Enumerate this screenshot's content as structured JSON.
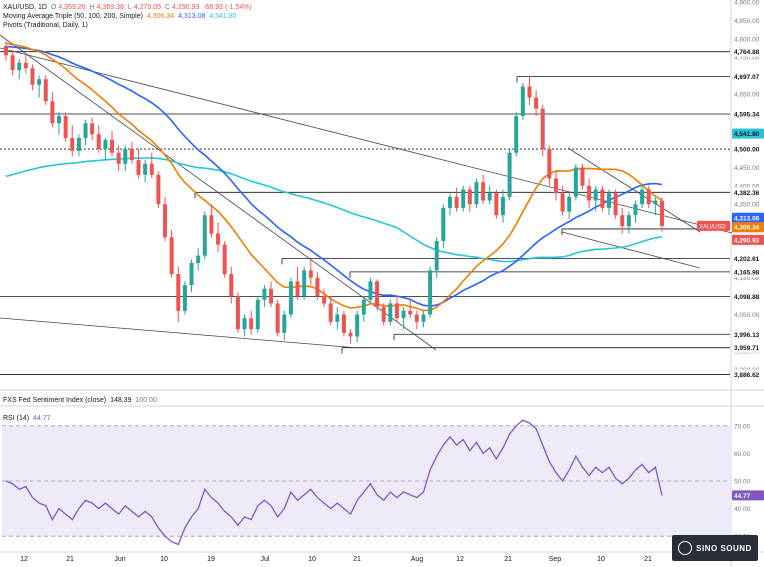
{
  "colors": {
    "up": "#26a69a",
    "down": "#ef5350",
    "ma50": "#f57c00",
    "ma100": "#2962ff",
    "ma200": "#26c6da",
    "rsi": "#7e57c2",
    "trend": "#434651",
    "pivot": "#131722",
    "rsiBand": "#e1d8f3"
  },
  "chart": {
    "symbol": "XAU/USD, 1D",
    "ohlc": {
      "o_label": "O",
      "o": "4,359.26",
      "h_label": "H",
      "h": "4,369.38",
      "l_label": "L",
      "l": "4,275.05",
      "c_label": "C",
      "c": "4,290.93",
      "change": "-66.92 (-1.54%)"
    },
    "ma_legend": {
      "label": "Moving Average Triple (50, 100, 200, Simple)",
      "v50": "4,306.34",
      "v100": "4,313.08",
      "v200": "4,541.80"
    },
    "pivots_legend": "Pivots (Traditional, Daily, 1)",
    "sentiment_legend": {
      "label": "FXS Fed Sentiment Index (close)",
      "value": "148.39",
      "extra": "100.00"
    },
    "rsi_legend": {
      "label": "RSI (14)",
      "value": "44.77"
    },
    "price_badge": {
      "label": "XAU/USD",
      "value": "4,290.93"
    }
  },
  "chart_data": {
    "type": "candlestick",
    "title": "XAU/USD, 1D",
    "ylim": [
      3850,
      4900
    ],
    "y_ticks": [
      "4,900.00",
      "4,850.00",
      "4,800.00",
      "4,750.00",
      "4,700.00",
      "4,650.00",
      "4,600.00",
      "4,550.00",
      "4,500.00",
      "4,450.00",
      "4,400.00",
      "4,350.00",
      "4,300.00",
      "4,250.00",
      "4,200.00",
      "4,150.00",
      "4,100.00",
      "4,050.00",
      "4,000.00",
      "3,950.00",
      "3,900.00"
    ],
    "x_ticks": [
      "12",
      "21",
      "Jun",
      "10",
      "19",
      "Jul",
      "10",
      "21",
      "Aug",
      "12",
      "21",
      "Sep",
      "10",
      "21",
      "Oct"
    ],
    "price_levels": [
      {
        "label": "4,764.88",
        "value": 4764.88
      },
      {
        "label": "4,697.07",
        "value": 4697.07
      },
      {
        "label": "4,595.34",
        "value": 4595.34
      },
      {
        "label": "4,500.00",
        "value": 4500.0
      },
      {
        "label": "4,382.36",
        "value": 4382.36
      },
      {
        "label": "4,282.69",
        "value": 4282.69
      },
      {
        "label": "4,202.61",
        "value": 4202.61
      },
      {
        "label": "4,165.98",
        "value": 4165.98
      },
      {
        "label": "4,098.88",
        "value": 4098.88
      },
      {
        "label": "3,996.13",
        "value": 3996.13
      },
      {
        "label": "3,959.71",
        "value": 3959.71
      },
      {
        "label": "3,886.62",
        "value": 3886.62
      }
    ],
    "tag_labels": {
      "ma200": "4,541.80",
      "ma100": "4,313.08",
      "ma50": "4,306.34",
      "last": "4,290.93"
    },
    "candles_note": "approximate daily OHLC read off the chart",
    "candles": [
      [
        4780,
        4795,
        4740,
        4755
      ],
      [
        4755,
        4770,
        4700,
        4715
      ],
      [
        4715,
        4745,
        4690,
        4735
      ],
      [
        4735,
        4760,
        4705,
        4720
      ],
      [
        4720,
        4730,
        4660,
        4675
      ],
      [
        4675,
        4700,
        4640,
        4690
      ],
      [
        4690,
        4700,
        4620,
        4630
      ],
      [
        4630,
        4655,
        4560,
        4570
      ],
      [
        4570,
        4600,
        4540,
        4590
      ],
      [
        4590,
        4600,
        4520,
        4530
      ],
      [
        4530,
        4565,
        4480,
        4495
      ],
      [
        4495,
        4540,
        4480,
        4530
      ],
      [
        4530,
        4580,
        4510,
        4570
      ],
      [
        4570,
        4585,
        4525,
        4540
      ],
      [
        4540,
        4565,
        4490,
        4500
      ],
      [
        4500,
        4530,
        4470,
        4525
      ],
      [
        4525,
        4550,
        4480,
        4490
      ],
      [
        4490,
        4510,
        4440,
        4460
      ],
      [
        4460,
        4510,
        4440,
        4500
      ],
      [
        4500,
        4520,
        4460,
        4470
      ],
      [
        4470,
        4500,
        4420,
        4430
      ],
      [
        4430,
        4470,
        4410,
        4460
      ],
      [
        4460,
        4490,
        4420,
        4430
      ],
      [
        4430,
        4440,
        4340,
        4350
      ],
      [
        4350,
        4370,
        4250,
        4260
      ],
      [
        4260,
        4280,
        4150,
        4160
      ],
      [
        4160,
        4180,
        4030,
        4060
      ],
      [
        4060,
        4140,
        4050,
        4130
      ],
      [
        4130,
        4200,
        4110,
        4190
      ],
      [
        4190,
        4230,
        4170,
        4210
      ],
      [
        4210,
        4330,
        4200,
        4320
      ],
      [
        4320,
        4350,
        4260,
        4270
      ],
      [
        4270,
        4300,
        4220,
        4240
      ],
      [
        4240,
        4250,
        4150,
        4160
      ],
      [
        4160,
        4180,
        4080,
        4100
      ],
      [
        4100,
        4110,
        4000,
        4010
      ],
      [
        4010,
        4050,
        3990,
        4040
      ],
      [
        4040,
        4060,
        3995,
        4010
      ],
      [
        4010,
        4100,
        4000,
        4090
      ],
      [
        4090,
        4130,
        4070,
        4120
      ],
      [
        4120,
        4140,
        4070,
        4080
      ],
      [
        4080,
        4090,
        3990,
        4000
      ],
      [
        4000,
        4060,
        3980,
        4050
      ],
      [
        4050,
        4150,
        4040,
        4140
      ],
      [
        4140,
        4180,
        4090,
        4100
      ],
      [
        4100,
        4180,
        4090,
        4170
      ],
      [
        4170,
        4200,
        4130,
        4150
      ],
      [
        4150,
        4165,
        4090,
        4100
      ],
      [
        4100,
        4120,
        4070,
        4080
      ],
      [
        4080,
        4100,
        4020,
        4030
      ],
      [
        4030,
        4070,
        4010,
        4050
      ],
      [
        4050,
        4060,
        3990,
        4000
      ],
      [
        4000,
        4010,
        3970,
        3990
      ],
      [
        3990,
        4060,
        3975,
        4050
      ],
      [
        4050,
        4100,
        4030,
        4090
      ],
      [
        4090,
        4150,
        4080,
        4140
      ],
      [
        4140,
        4145,
        4060,
        4070
      ],
      [
        4070,
        4080,
        4020,
        4030
      ],
      [
        4030,
        4090,
        4020,
        4080
      ],
      [
        4080,
        4100,
        4030,
        4040
      ],
      [
        4040,
        4070,
        4010,
        4060
      ],
      [
        4060,
        4090,
        4040,
        4050
      ],
      [
        4050,
        4060,
        4010,
        4030
      ],
      [
        4030,
        4060,
        4015,
        4050
      ],
      [
        4050,
        4180,
        4040,
        4170
      ],
      [
        4170,
        4260,
        4150,
        4250
      ],
      [
        4250,
        4350,
        4230,
        4340
      ],
      [
        4340,
        4380,
        4320,
        4370
      ],
      [
        4370,
        4395,
        4330,
        4340
      ],
      [
        4340,
        4400,
        4330,
        4390
      ],
      [
        4390,
        4400,
        4330,
        4350
      ],
      [
        4350,
        4420,
        4340,
        4410
      ],
      [
        4410,
        4430,
        4350,
        4360
      ],
      [
        4360,
        4400,
        4350,
        4380
      ],
      [
        4380,
        4390,
        4310,
        4320
      ],
      [
        4320,
        4390,
        4300,
        4370
      ],
      [
        4370,
        4500,
        4360,
        4490
      ],
      [
        4490,
        4600,
        4480,
        4590
      ],
      [
        4590,
        4680,
        4580,
        4670
      ],
      [
        4670,
        4700,
        4620,
        4640
      ],
      [
        4640,
        4660,
        4590,
        4610
      ],
      [
        4610,
        4620,
        4480,
        4500
      ],
      [
        4500,
        4510,
        4400,
        4420
      ],
      [
        4420,
        4440,
        4360,
        4380
      ],
      [
        4380,
        4400,
        4320,
        4330
      ],
      [
        4330,
        4380,
        4310,
        4370
      ],
      [
        4370,
        4460,
        4360,
        4450
      ],
      [
        4450,
        4460,
        4390,
        4400
      ],
      [
        4400,
        4420,
        4340,
        4360
      ],
      [
        4360,
        4400,
        4330,
        4390
      ],
      [
        4390,
        4400,
        4330,
        4340
      ],
      [
        4340,
        4390,
        4320,
        4380
      ],
      [
        4380,
        4390,
        4310,
        4320
      ],
      [
        4320,
        4340,
        4270,
        4290
      ],
      [
        4290,
        4330,
        4270,
        4320
      ],
      [
        4320,
        4360,
        4300,
        4350
      ],
      [
        4350,
        4400,
        4340,
        4390
      ],
      [
        4390,
        4400,
        4340,
        4350
      ],
      [
        4350,
        4370,
        4320,
        4360
      ],
      [
        4359.26,
        4369.38,
        4275.05,
        4290.93
      ]
    ],
    "sentiment": {
      "label": "FXS Fed Sentiment Index (close)",
      "value": 148.39
    },
    "rsi": {
      "label": "RSI (14)",
      "last": 44.77,
      "ylim": [
        25,
        75
      ],
      "y_ticks": [
        "70.00",
        "60.00",
        "50.00",
        "40.00",
        "30.00"
      ],
      "values": [
        50,
        49,
        47,
        48,
        44,
        42,
        41,
        36,
        40,
        38,
        36,
        40,
        43,
        42,
        40,
        42,
        40,
        38,
        41,
        39,
        37,
        39,
        37,
        33,
        30,
        28,
        27,
        33,
        37,
        40,
        47,
        44,
        42,
        39,
        37,
        34,
        37,
        36,
        41,
        43,
        41,
        37,
        40,
        46,
        43,
        45,
        47,
        44,
        42,
        40,
        42,
        40,
        38,
        43,
        46,
        49,
        45,
        43,
        46,
        44,
        46,
        45,
        44,
        46,
        54,
        59,
        63,
        66,
        63,
        65,
        61,
        64,
        60,
        62,
        58,
        62,
        67,
        70,
        72,
        71,
        69,
        63,
        57,
        53,
        50,
        54,
        59,
        55,
        52,
        55,
        53,
        55,
        51,
        49,
        51,
        54,
        56,
        53,
        55,
        44.77
      ]
    }
  }
}
